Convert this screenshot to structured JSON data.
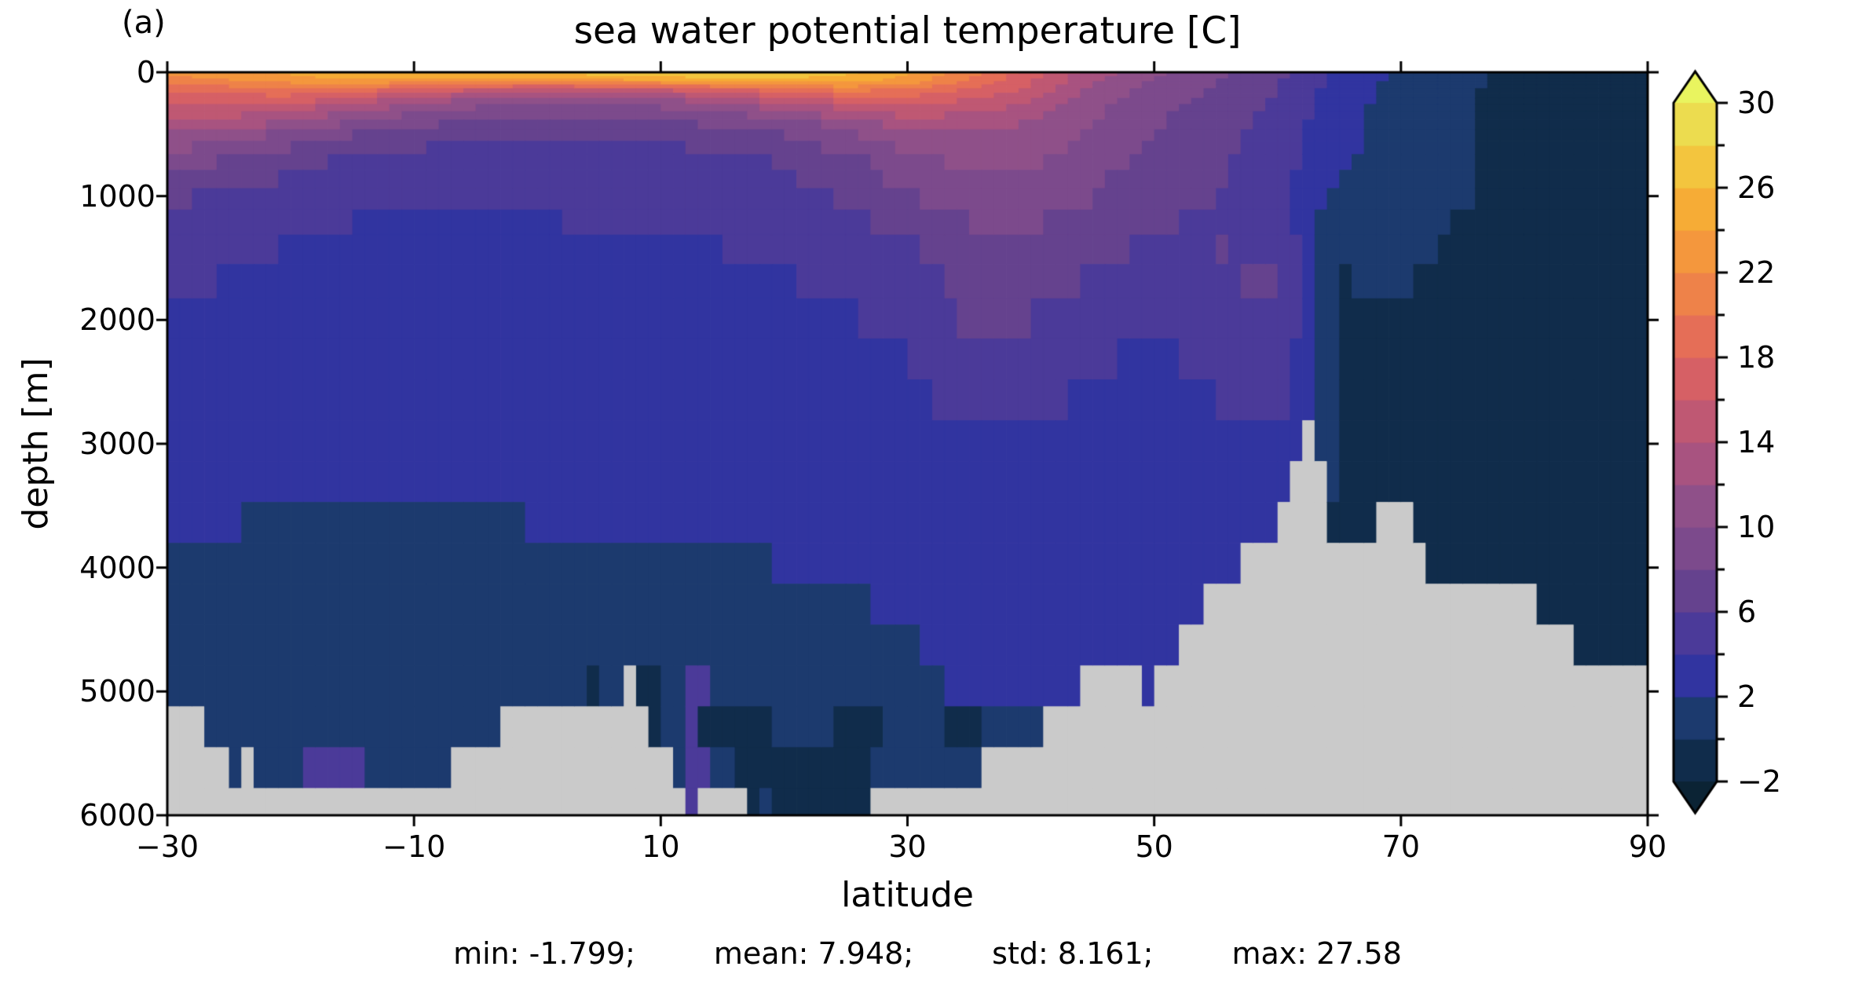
{
  "panel_label": "(a)",
  "title": "sea water potential temperature [C]",
  "xlabel": "latitude",
  "ylabel": "depth [m]",
  "stats": {
    "segments": [
      "min: -1.799;",
      "mean: 7.948;",
      "std: 8.161;",
      "max: 27.58"
    ]
  },
  "axes": {
    "x_range": [
      -30,
      90
    ],
    "y_range": [
      0,
      6000
    ],
    "x_ticks": [
      {
        "value": -30,
        "label": "−30"
      },
      {
        "value": -10,
        "label": "−10"
      },
      {
        "value": 10,
        "label": "10"
      },
      {
        "value": 30,
        "label": "30"
      },
      {
        "value": 50,
        "label": "50"
      },
      {
        "value": 70,
        "label": "70"
      },
      {
        "value": 90,
        "label": "90"
      }
    ],
    "y_ticks": [
      {
        "value": 0,
        "label": "0"
      },
      {
        "value": 1000,
        "label": "1000"
      },
      {
        "value": 2000,
        "label": "2000"
      },
      {
        "value": 3000,
        "label": "3000"
      },
      {
        "value": 4000,
        "label": "4000"
      },
      {
        "value": 5000,
        "label": "5000"
      },
      {
        "value": 6000,
        "label": "6000"
      }
    ]
  },
  "colorbar": {
    "range": [
      -2,
      30
    ],
    "band_step": 2,
    "major_ticks": [
      {
        "value": 30,
        "label": "30"
      },
      {
        "value": 26,
        "label": "26"
      },
      {
        "value": 22,
        "label": "22"
      },
      {
        "value": 18,
        "label": "18"
      },
      {
        "value": 14,
        "label": "14"
      },
      {
        "value": 10,
        "label": "10"
      },
      {
        "value": 6,
        "label": "6"
      },
      {
        "value": 2,
        "label": "2"
      },
      {
        "value": -2,
        "label": "−2"
      }
    ],
    "minor_ticks": [
      28,
      24,
      20,
      16,
      12,
      8,
      4,
      0
    ],
    "band_colors": [
      "#102c4b",
      "#1c3a6e",
      "#3134a0",
      "#4b3a99",
      "#65428e",
      "#7c4a8c",
      "#8f5089",
      "#a85380",
      "#bf5873",
      "#d66065",
      "#e56e57",
      "#ee8249",
      "#f4973d",
      "#f6ac36",
      "#f3c53e",
      "#ecdc4f"
    ],
    "under_color": "#0b2334",
    "over_color": "#e9f45f"
  },
  "chart_data": {
    "type": "heatmap",
    "title": "sea water potential temperature [C]",
    "xlabel": "latitude",
    "ylabel": "depth [m]",
    "units": "C",
    "legend_position": "right-colorbar",
    "grid": false,
    "stats": {
      "min": -1.799,
      "mean": 7.948,
      "std": 8.161,
      "max": 27.58
    },
    "seafloor_mask_color": "#cacaca",
    "x_lat": [
      -30,
      -25,
      -20,
      -15,
      -10,
      -5,
      0,
      5,
      10,
      15,
      20,
      25,
      30,
      35,
      40,
      45,
      50,
      55,
      60,
      65,
      70,
      75,
      80,
      85,
      90
    ],
    "y_depth": [
      0,
      50,
      100,
      150,
      200,
      300,
      400,
      500,
      700,
      1000,
      1250,
      1500,
      2000,
      2500,
      3000,
      3500,
      4000,
      4500,
      5000,
      5500,
      6000
    ],
    "values": [
      [
        22.3,
        23.2,
        24.3,
        25,
        25.4,
        26,
        26.5,
        27,
        27.3,
        27.5,
        27.2,
        26.5,
        24.5,
        21,
        17,
        13,
        10.5,
        8.5,
        6.5,
        3.5,
        1.5,
        0.5,
        -0.5,
        -1.2,
        -1.5
      ],
      [
        21.5,
        22.5,
        23.5,
        24.5,
        25,
        25,
        24.8,
        25,
        25.5,
        26,
        26,
        25.5,
        23.5,
        20,
        16.5,
        12.5,
        10,
        8.2,
        6.3,
        3.4,
        1.5,
        0.5,
        -0.8,
        -1.4,
        -1.6
      ],
      [
        19.5,
        20.5,
        21.5,
        21.5,
        20.5,
        19.5,
        19,
        19.5,
        20.5,
        21.5,
        22.5,
        23,
        22,
        19,
        16,
        12,
        9.5,
        8,
        6.2,
        3.2,
        1.4,
        0.5,
        -1,
        -1.5,
        -1.6
      ],
      [
        18.5,
        19,
        19.5,
        18.5,
        17,
        15.5,
        14.5,
        14.5,
        15.5,
        17,
        18.5,
        20,
        19.5,
        17.5,
        15.5,
        11.5,
        9.2,
        7.8,
        6,
        3,
        1.2,
        0.4,
        -1.2,
        -1.6,
        -1.7
      ],
      [
        17,
        17.5,
        17.5,
        16,
        14,
        12.5,
        12,
        12,
        12.5,
        14,
        16,
        17.5,
        18,
        16.5,
        14.5,
        11,
        9,
        7.5,
        5.8,
        2.9,
        1.2,
        0.3,
        -1.2,
        -1.6,
        -1.7
      ],
      [
        15,
        15.5,
        14.5,
        12.5,
        10.5,
        9.5,
        9,
        9,
        9.5,
        10.5,
        12,
        14,
        15.5,
        14.5,
        13,
        10.5,
        8.5,
        7.2,
        5.5,
        2.7,
        1.1,
        0.3,
        -1.2,
        -1.6,
        -1.7
      ],
      [
        13.5,
        13,
        12,
        10,
        8.5,
        8,
        7.5,
        7.5,
        8,
        8.5,
        9.5,
        11,
        13,
        13,
        12,
        10,
        8.2,
        7,
        5.3,
        2.6,
        1,
        0.2,
        -1.1,
        -1.5,
        -1.6
      ],
      [
        11.5,
        11,
        9.5,
        8,
        7,
        6.5,
        6.3,
        6.3,
        6.6,
        7.2,
        8,
        9.5,
        11.5,
        12,
        11.5,
        9.5,
        8,
        6.8,
        5.2,
        2.5,
        1,
        0.2,
        -1,
        -1.4,
        -1.5
      ],
      [
        9.5,
        8,
        6.8,
        5.8,
        5.2,
        5,
        5,
        5,
        5.2,
        5.6,
        6.2,
        7.5,
        9.5,
        10.5,
        10.5,
        8.8,
        7.4,
        6.4,
        5,
        2.4,
        1,
        0.2,
        -0.8,
        -1.2,
        -1.3
      ],
      [
        6.5,
        5.5,
        4.8,
        4.4,
        4.2,
        4.2,
        4.3,
        4.4,
        4.6,
        4.9,
        5.4,
        6.3,
        7.8,
        9,
        9.2,
        8,
        6.8,
        6,
        4.8,
        1.2,
        0.8,
        0.1,
        -0.5,
        -0.9,
        -1
      ],
      [
        5.5,
        4.7,
        4.2,
        3.9,
        3.8,
        3.8,
        3.9,
        4,
        4.1,
        4.3,
        4.7,
        5.4,
        6.6,
        7.8,
        8,
        7.2,
        6.2,
        5.6,
        4.5,
        0.5,
        0.5,
        -0.1,
        -0.3,
        -0.7,
        -0.8
      ],
      [
        4.8,
        4.2,
        3.8,
        3.5,
        3.4,
        3.4,
        3.5,
        3.6,
        3.7,
        3.9,
        4.2,
        4.7,
        5.6,
        6.7,
        7,
        6.3,
        5.5,
        6.2,
        6.3,
        0.1,
        0.2,
        -0.2,
        -0.3,
        -0.5,
        -0.6
      ],
      [
        3.8,
        3.4,
        3.1,
        3,
        3,
        3,
        3.1,
        3.1,
        3.2,
        3.3,
        3.5,
        3.8,
        4.4,
        6.5,
        6,
        5,
        4.2,
        5.4,
        5.8,
        -0.2,
        -0.2,
        -0.3,
        -0.3,
        -0.3,
        -0.3
      ],
      [
        3.2,
        2.9,
        2.7,
        2.6,
        2.6,
        2.6,
        2.7,
        2.7,
        2.8,
        2.9,
        3,
        3.2,
        3.6,
        5.2,
        4.6,
        4,
        3.2,
        4.4,
        5.2,
        -0.3,
        -0.3,
        -0.4,
        -0.4,
        -0.4,
        -0.4
      ],
      [
        2.8,
        2.5,
        2.4,
        2.3,
        2.3,
        2.3,
        2.4,
        2.4,
        2.5,
        2.5,
        2.6,
        2.8,
        3,
        3.8,
        3.5,
        3.2,
        2.6,
        3.2,
        3.6,
        -0.3,
        -0.4,
        -0.4,
        -0.4,
        -0.4,
        -0.4
      ],
      [
        2.2,
        2.1,
        2,
        2,
        2,
        2,
        2.1,
        2.1,
        2.2,
        2.2,
        2.3,
        2.4,
        2.6,
        2.8,
        2.9,
        2.7,
        2.5,
        2.4,
        2.6,
        -0.3,
        -0.4,
        -0.4,
        -0.4,
        -0.4,
        -0.4
      ],
      [
        1.8,
        1.8,
        1.7,
        1.7,
        1.7,
        1.7,
        1.8,
        1.8,
        1.9,
        1.9,
        2,
        2.1,
        2.2,
        2.4,
        2.5,
        2.3,
        2.2,
        2.1,
        2.2,
        -0.3,
        -0.4,
        -0.4,
        -0.4,
        -0.4,
        -0.4
      ],
      [
        1.4,
        1.4,
        1.4,
        1.4,
        1.4,
        1.5,
        1.5,
        1.5,
        1.6,
        1.6,
        1.7,
        1.8,
        2,
        2.2,
        2.3,
        2.2,
        2.1,
        2,
        2,
        -0.3,
        -0.4,
        -0.4,
        -0.4,
        -0.4,
        -0.4
      ],
      [
        1.1,
        1.1,
        1.1,
        1.2,
        1.2,
        1.2,
        1.3,
        1.3,
        1.3,
        1.4,
        1.4,
        1.5,
        1.8,
        2.1,
        2.2,
        2.1,
        2,
        2,
        2,
        -0.3,
        -0.4,
        -0.4,
        -0.4,
        -0.4,
        -0.4
      ],
      [
        0.9,
        0.9,
        1,
        1,
        1,
        1.1,
        1.1,
        1.1,
        1.2,
        1.2,
        1.2,
        1.3,
        1.4,
        1.7,
        1.8,
        1.8,
        1.9,
        2,
        2,
        -0.3,
        -0.4,
        -0.4,
        -0.4,
        -0.4,
        -0.4
      ],
      [
        0.8,
        0.8,
        0.9,
        0.9,
        0.9,
        1,
        1,
        1,
        1.1,
        1.1,
        1.1,
        1.2,
        1.3,
        1.5,
        1.7,
        1.7,
        1.8,
        1.9,
        2,
        -0.3,
        -0.4,
        -0.4,
        -0.4,
        -0.4,
        -0.4
      ]
    ],
    "bathymetry": {
      "lat": [
        -30,
        -27.5,
        -25,
        -22.5,
        -20,
        -17.5,
        -15,
        -12.5,
        -10,
        -7.5,
        -5,
        -2.5,
        0,
        2.5,
        5,
        7.5,
        10,
        12.5,
        15,
        17.5,
        20,
        22.5,
        25,
        27.5,
        30,
        32.5,
        35,
        37.5,
        40,
        42.5,
        45,
        47.5,
        50,
        52.5,
        55,
        57.5,
        60,
        62.5,
        65,
        67.5,
        70,
        72.5,
        75,
        77.5,
        80,
        82.5,
        85,
        87.5,
        90
      ],
      "floor_depth": [
        5100,
        5150,
        5680,
        5680,
        5680,
        5680,
        5680,
        5680,
        5680,
        5690,
        5430,
        5200,
        5160,
        5160,
        5160,
        4890,
        5430,
        5980,
        5710,
        6010,
        6010,
        6010,
        6010,
        5850,
        5710,
        5710,
        5710,
        5430,
        5430,
        5160,
        4890,
        4890,
        5050,
        4460,
        4190,
        3900,
        3630,
        2890,
        3890,
        3700,
        3390,
        4190,
        4190,
        4190,
        4190,
        4480,
        4830,
        4830,
        4830
      ]
    },
    "anomalies": [
      {
        "lat": [
          -24,
          -23.1
        ],
        "depth": [
          5430,
          5700
        ],
        "t": null
      },
      {
        "lat": [
          -18.5,
          -14
        ],
        "depth": [
          5430,
          5690
        ],
        "t": 5
      },
      {
        "lat": [
          12,
          13.6
        ],
        "depth": [
          4700,
          6000
        ],
        "t": 4.5
      },
      {
        "lat": [
          13.5,
          15.5
        ],
        "depth": [
          5160,
          5430
        ],
        "t": -0.5
      },
      {
        "lat": [
          16.5,
          18.5
        ],
        "depth": [
          5160,
          5690
        ],
        "t": -0.5
      },
      {
        "lat": [
          15.5,
          18
        ],
        "depth": [
          5690,
          6000
        ],
        "t": -0.5
      },
      {
        "lat": [
          19.5,
          26.5
        ],
        "depth": [
          5430,
          6000
        ],
        "t": -0.5
      },
      {
        "lat": [
          24,
          27.5
        ],
        "depth": [
          5160,
          5430
        ],
        "t": -0.5
      },
      {
        "lat": [
          33,
          35.5
        ],
        "depth": [
          5160,
          5430
        ],
        "t": -0.5
      },
      {
        "lat": [
          4,
          5
        ],
        "depth": [
          4890,
          5430
        ],
        "t": -0.5
      },
      {
        "lat": [
          8.5,
          9.5
        ],
        "depth": [
          4890,
          5430
        ],
        "t": -0.5
      }
    ]
  }
}
